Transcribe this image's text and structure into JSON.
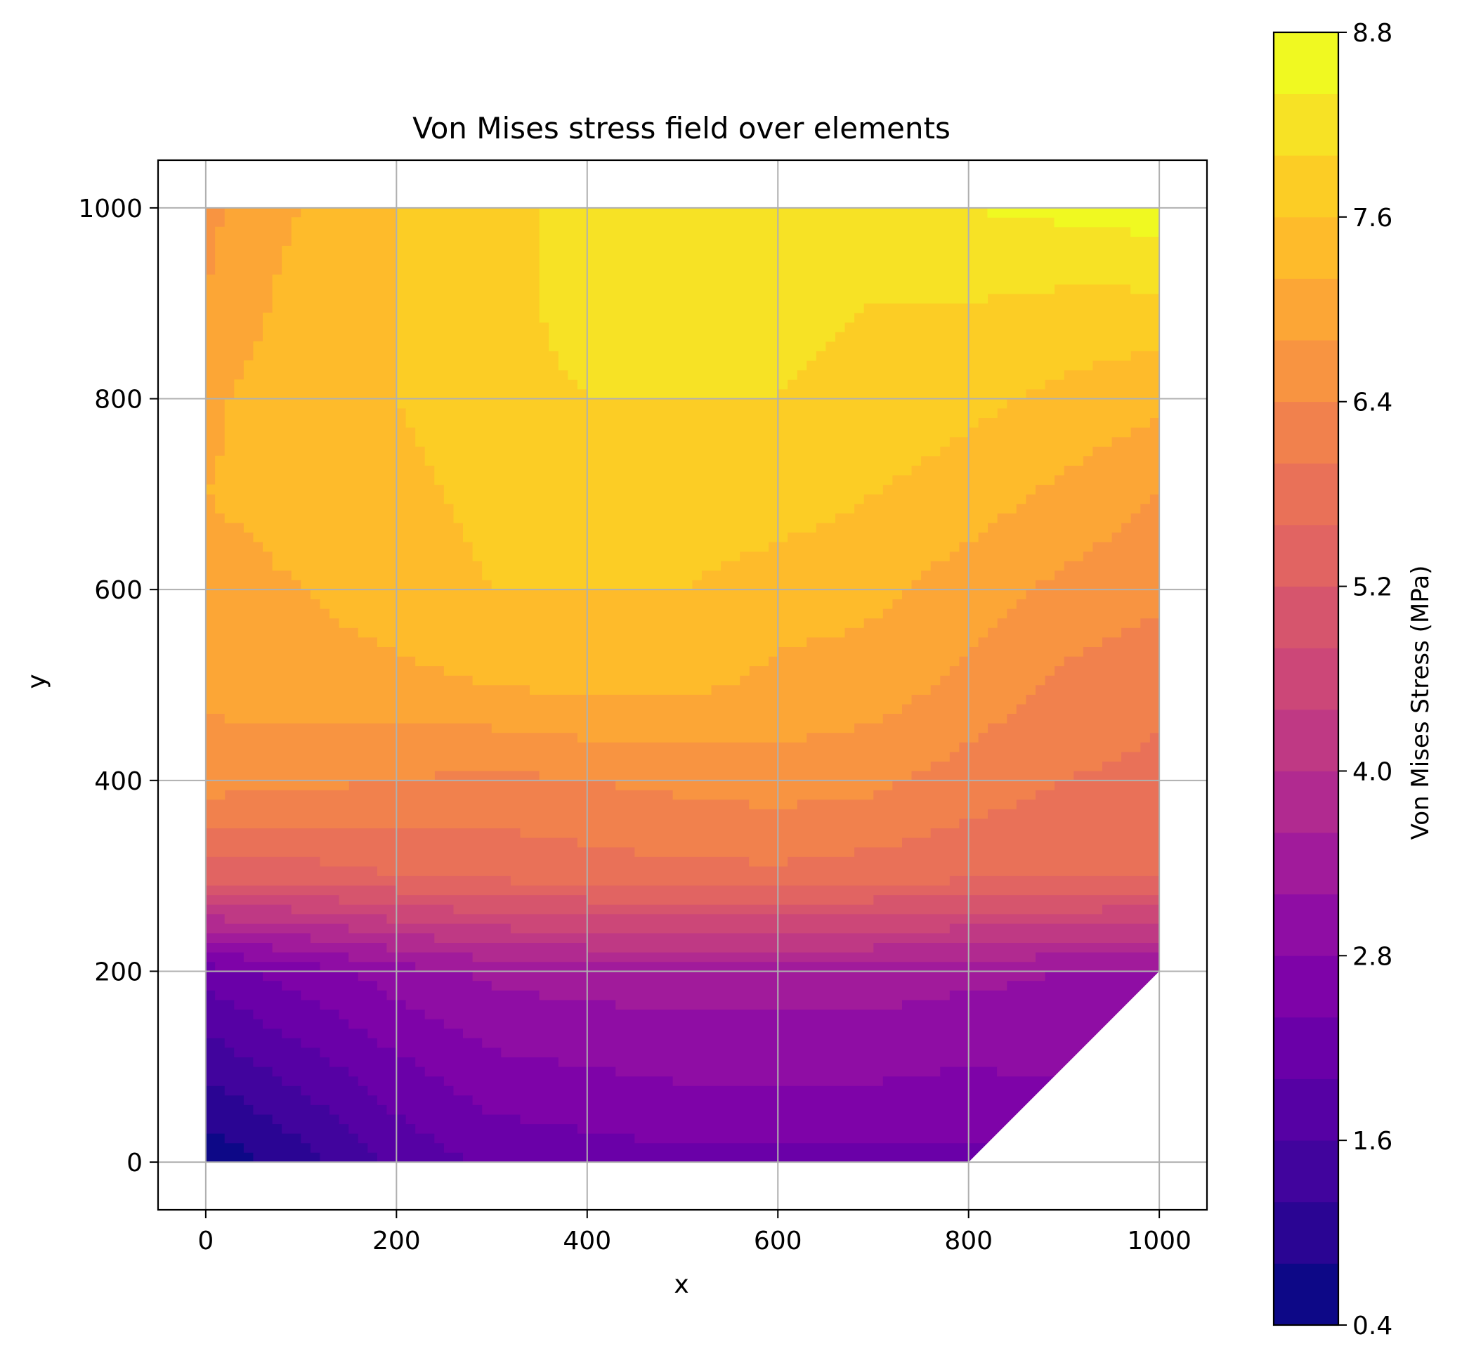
{
  "chart_data": {
    "type": "heatmap",
    "subtype": "filled-contour",
    "title": "Von Mises stress field over elements",
    "xlabel": "x",
    "ylabel": "y",
    "xlim": [
      -50,
      1050
    ],
    "ylim": [
      -50,
      1050
    ],
    "xticks": [
      0,
      200,
      400,
      600,
      800,
      1000
    ],
    "yticks": [
      0,
      200,
      400,
      600,
      800,
      1000
    ],
    "grid": true,
    "colormap": "plasma",
    "colorbar": {
      "label": "Von Mises Stress (MPa)",
      "min": 0.4,
      "max": 8.8,
      "ticks": [
        0.4,
        1.6,
        2.8,
        4.0,
        5.2,
        6.4,
        7.6,
        8.8
      ],
      "tick_labels": [
        "0.4",
        "1.6",
        "2.8",
        "4.0",
        "5.2",
        "6.4",
        "7.6",
        "8.8"
      ],
      "levels": 21,
      "colors": [
        "#0d0887",
        "#2a0593",
        "#41049d",
        "#5601a4",
        "#6a00a8",
        "#7e03a8",
        "#8f0da4",
        "#a11b9b",
        "#b12a90",
        "#bf3984",
        "#cc4778",
        "#d6556d",
        "#e16462",
        "#e97158",
        "#f1814d",
        "#f89441",
        "#fca636",
        "#febb2b",
        "#fccd25",
        "#f7e225",
        "#f0f921"
      ]
    },
    "domain_outline": [
      [
        0,
        0
      ],
      [
        800,
        0
      ],
      [
        1000,
        200
      ],
      [
        1000,
        1000
      ],
      [
        0,
        1000
      ]
    ],
    "grid_x": [
      0,
      100,
      200,
      300,
      400,
      500,
      600,
      700,
      800,
      900,
      1000
    ],
    "grid_y": [
      0,
      100,
      200,
      300,
      400,
      500,
      600,
      700,
      800,
      900,
      1000
    ],
    "z": [
      [
        0.5,
        1.0,
        1.7,
        2.1,
        2.2,
        2.3,
        2.3,
        2.3,
        2.3,
        null,
        null
      ],
      [
        1.3,
        1.8,
        2.3,
        2.7,
        2.8,
        2.9,
        2.9,
        2.9,
        2.8,
        2.9,
        null
      ],
      [
        2.2,
        2.6,
        3.0,
        3.3,
        3.4,
        3.4,
        3.4,
        3.4,
        3.3,
        3.2,
        3.2
      ],
      [
        5.4,
        5.4,
        5.6,
        5.7,
        5.8,
        5.9,
        5.9,
        5.8,
        5.7,
        5.7,
        5.6
      ],
      [
        6.6,
        6.5,
        6.4,
        6.3,
        6.4,
        6.5,
        6.6,
        6.5,
        6.2,
        6.0,
        5.9
      ],
      [
        6.9,
        7.0,
        7.1,
        7.2,
        7.3,
        7.3,
        7.1,
        7.0,
        6.7,
        6.3,
        6.1
      ],
      [
        7.0,
        7.2,
        7.4,
        7.6,
        7.6,
        7.6,
        7.4,
        7.3,
        7.0,
        6.7,
        6.5
      ],
      [
        7.2,
        7.4,
        7.5,
        7.7,
        7.8,
        7.9,
        7.8,
        7.6,
        7.4,
        7.1,
        6.8
      ],
      [
        7.1,
        7.5,
        7.6,
        7.8,
        8.0,
        8.0,
        8.0,
        7.9,
        7.7,
        7.5,
        7.3
      ],
      [
        6.8,
        7.4,
        7.6,
        7.8,
        8.2,
        8.2,
        8.1,
        8.0,
        8.0,
        7.9,
        7.9
      ],
      [
        6.7,
        7.2,
        7.6,
        7.8,
        8.2,
        8.2,
        8.2,
        8.2,
        8.4,
        8.5,
        8.6
      ]
    ]
  }
}
